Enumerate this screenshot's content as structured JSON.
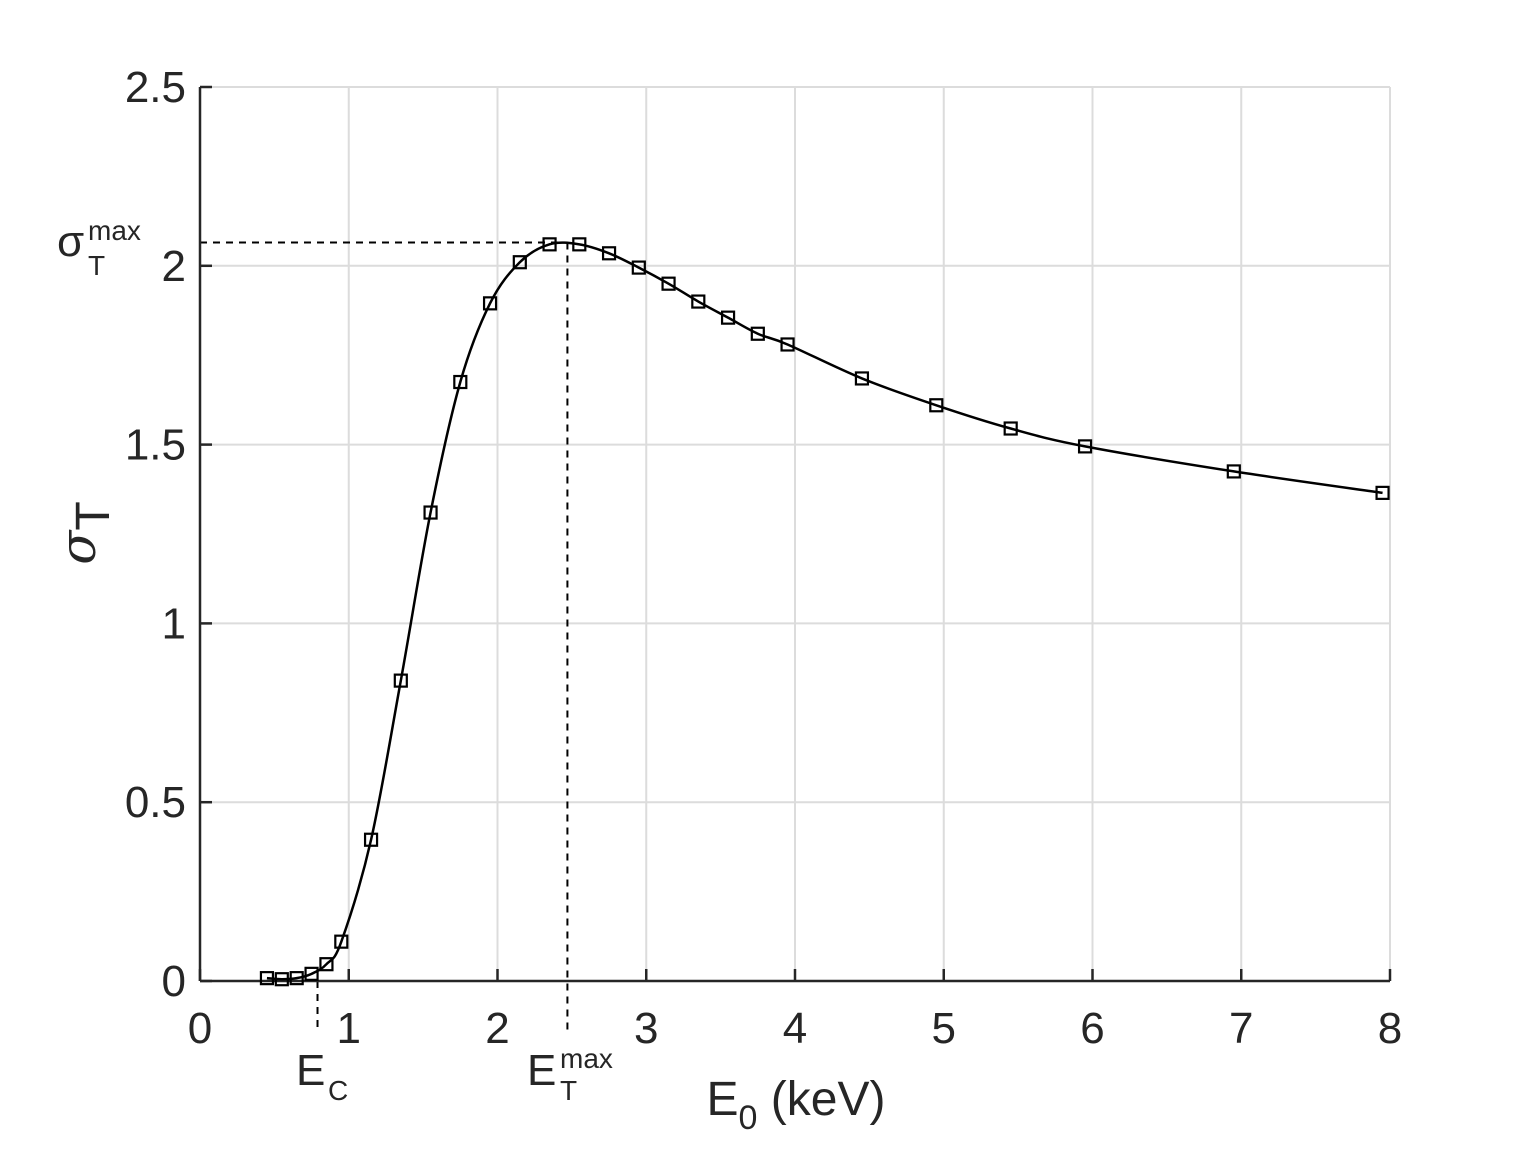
{
  "chart_data": {
    "type": "line",
    "title": "",
    "xlabel": {
      "main": "E",
      "sub": "0",
      "tail": " (keV)"
    },
    "ylabel": {
      "main": "σ",
      "sub": "T"
    },
    "xlim": [
      0,
      8
    ],
    "ylim": [
      0,
      2.5
    ],
    "xticks": [
      0,
      1,
      2,
      3,
      4,
      5,
      6,
      7,
      8
    ],
    "xtick_labels": [
      "0",
      "1",
      "2",
      "3",
      "4",
      "5",
      "6",
      "7",
      "8"
    ],
    "yticks": [
      0,
      0.5,
      1,
      1.5,
      2,
      2.5
    ],
    "ytick_labels": [
      "0",
      "0.5",
      "1",
      "1.5",
      "2",
      "2.5"
    ],
    "grid": true,
    "marker": "square",
    "series": [
      {
        "x": [
          0.45,
          0.55,
          0.65,
          0.75,
          0.85,
          0.95,
          1.15,
          1.35,
          1.55,
          1.75,
          1.95,
          2.15,
          2.35,
          2.55,
          2.75,
          2.95,
          3.15,
          3.35,
          3.55,
          3.75,
          3.95,
          4.45,
          4.95,
          5.45,
          5.95,
          6.95,
          7.95
        ],
        "y": [
          0.008,
          0.005,
          0.008,
          0.02,
          0.047,
          0.11,
          0.395,
          0.84,
          1.31,
          1.675,
          1.895,
          2.01,
          2.06,
          2.06,
          2.035,
          1.995,
          1.95,
          1.9,
          1.855,
          1.81,
          1.78,
          1.685,
          1.61,
          1.545,
          1.495,
          1.425,
          1.365
        ]
      }
    ],
    "annotations": {
      "sigma_max": {
        "main": "σ",
        "sub": "T",
        "sup": "max",
        "value": 2.065
      },
      "e_max": {
        "main": "E",
        "sub": "T",
        "sup": "max",
        "value": 2.47
      },
      "e_c": {
        "main": "E",
        "sub": "C",
        "value": 0.79
      }
    },
    "colors": {
      "axes": "#262626",
      "grid": "#dcdcdc",
      "line": "#000000"
    }
  }
}
